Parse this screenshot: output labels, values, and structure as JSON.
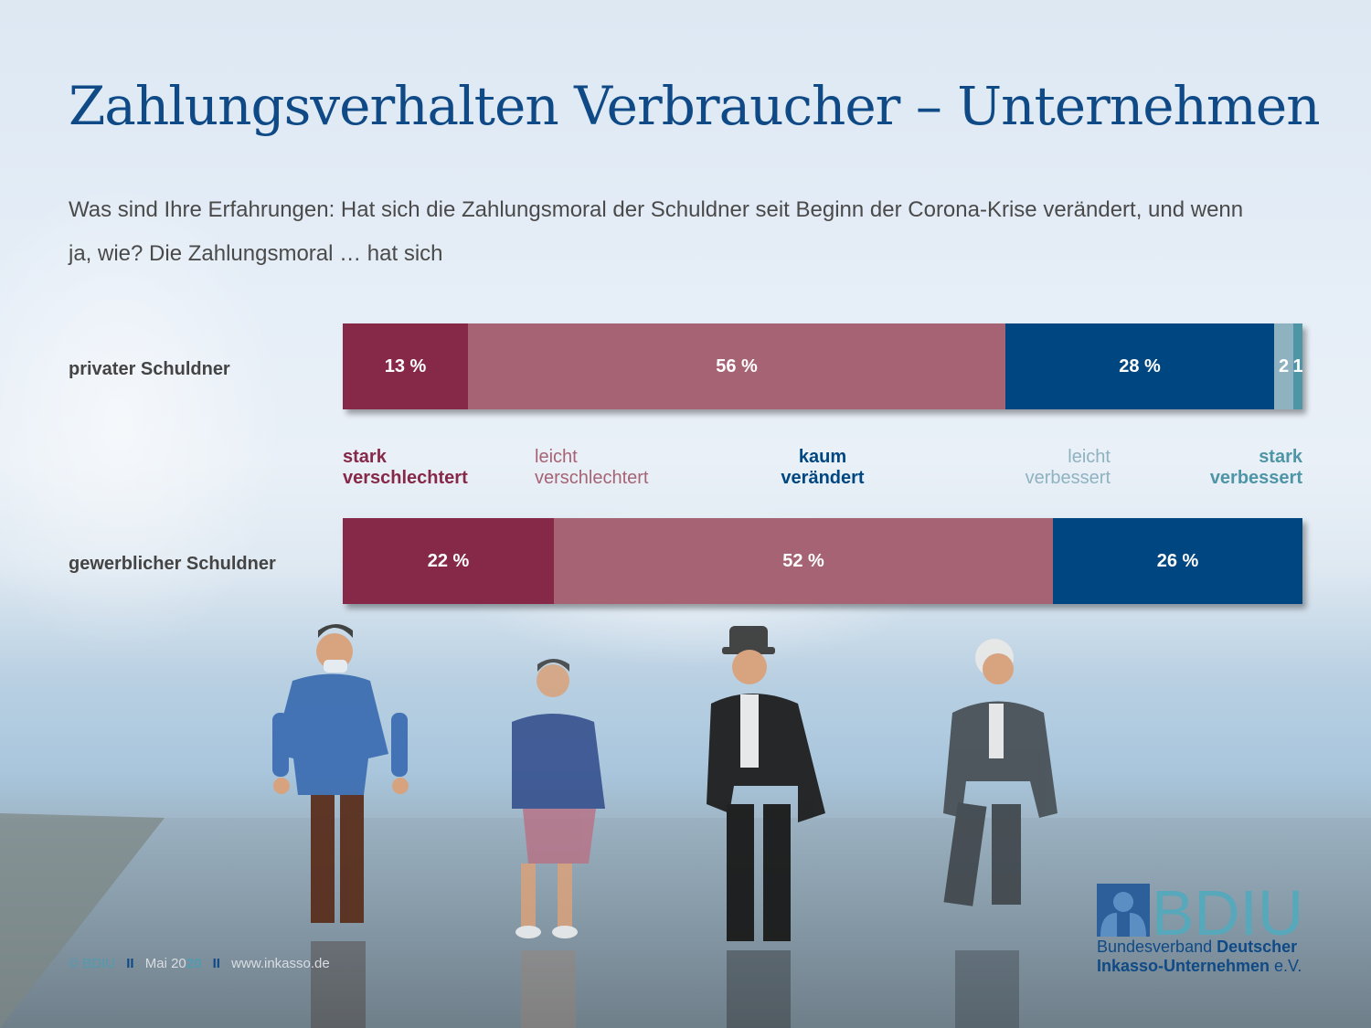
{
  "title": "Zahlungsverhalten Verbraucher – Unternehmen",
  "subtitle": "Was sind Ihre Erfahrungen: Hat sich die Zahlungsmoral der Schuldner seit Beginn der Corona-Krise verändert, und wenn ja, wie? Die Zahlungsmoral … hat sich",
  "colors": {
    "stark_verschlechtert": "#862848",
    "leicht_verschlechtert": "#a66374",
    "kaum_veraendert": "#004680",
    "leicht_verbessert": "#8fb2c0",
    "stark_verbessert": "#4e95a6",
    "title": "#0f4a86"
  },
  "chart_data": {
    "type": "bar",
    "orientation": "horizontal",
    "stacked": true,
    "title": "Zahlungsverhalten Verbraucher – Unternehmen",
    "categories": [
      "privater Schuldner",
      "gewerblicher Schuldner"
    ],
    "series": [
      {
        "name": "stark verschlechtert",
        "values": [
          13,
          22
        ],
        "labels": [
          "13 %",
          "22 %"
        ]
      },
      {
        "name": "leicht verschlechtert",
        "values": [
          56,
          52
        ],
        "labels": [
          "56 %",
          "52 %"
        ]
      },
      {
        "name": "kaum verändert",
        "values": [
          28,
          26
        ],
        "labels": [
          "28 %",
          "26 %"
        ]
      },
      {
        "name": "leicht verbessert",
        "values": [
          2,
          0
        ],
        "labels": [
          "2",
          ""
        ]
      },
      {
        "name": "stark verbessert",
        "values": [
          1,
          0
        ],
        "labels": [
          "1",
          ""
        ]
      }
    ],
    "legend": [
      {
        "line1": "stark",
        "line2": "verschlechtert",
        "bold": true
      },
      {
        "line1": "leicht",
        "line2": "verschlechtert",
        "bold": false
      },
      {
        "line1": "kaum",
        "line2": "verändert",
        "bold": true
      },
      {
        "line1": "leicht",
        "line2": "verbessert",
        "bold": false
      },
      {
        "line1": "stark",
        "line2": "verbessert",
        "bold": true
      }
    ],
    "legend_position": "between-bars",
    "xlim": [
      0,
      100
    ],
    "unit": "%",
    "grid": false
  },
  "footer": {
    "copyright": "© BDIU",
    "sep": "II",
    "date_prefix": "Mai 20",
    "date_suffix": "20",
    "url": "www.inkasso.de"
  },
  "logo": {
    "wordmark": "BDIU",
    "line1_regular": "Bundesverband ",
    "line1_bold": "Deutscher",
    "line2_bold": "Inkasso-Unternehmen",
    "line2_regular": " e.V."
  }
}
